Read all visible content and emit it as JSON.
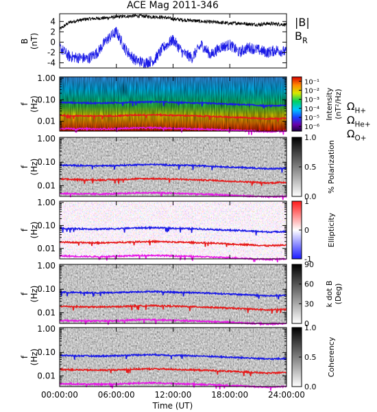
{
  "title": "ACE Mag 2011-346",
  "colors": {
    "total_field": "#000000",
    "radial_field": "#1a1ae6",
    "proton_cyclotron": "#1a1ae6",
    "helium_cyclotron": "#e61a1a",
    "oxygen_cyclotron": "#e619e6"
  },
  "chart_data": [
    {
      "type": "line",
      "name": "magnetic-field",
      "ylabel": "B (nT)",
      "ylabel_main": "B",
      "ylabel_unit": "(nT)",
      "ylim": [
        -5,
        5.5
      ],
      "yticks": [
        "4",
        "2",
        "0",
        "-2",
        "-4"
      ],
      "ytick_values": [
        4,
        2,
        0,
        -2,
        -4
      ],
      "xlim": [
        0,
        24
      ],
      "legend": [
        {
          "label": "|B|",
          "color": "#000000"
        },
        {
          "label": "B",
          "sub": "R",
          "color": "#1a1ae6"
        }
      ],
      "series": [
        {
          "name": "|B|",
          "x": [
            0,
            1,
            2,
            3,
            4,
            5,
            6,
            7,
            8,
            9,
            10,
            11,
            12,
            13,
            14,
            15,
            16,
            17,
            18,
            19,
            20,
            21,
            22,
            23,
            24
          ],
          "values": [
            2.5,
            3.8,
            4.2,
            4.5,
            4.6,
            4.7,
            4.9,
            5.0,
            5.1,
            5.0,
            4.9,
            4.8,
            4.5,
            4.3,
            4.2,
            4.0,
            3.9,
            3.8,
            3.6,
            3.7,
            3.5,
            3.4,
            3.6,
            3.5,
            3.4
          ]
        },
        {
          "name": "B_R",
          "x": [
            0,
            1,
            2,
            3,
            4,
            5,
            6,
            7,
            8,
            9,
            10,
            11,
            12,
            13,
            14,
            15,
            16,
            17,
            18,
            19,
            20,
            21,
            22,
            23,
            24
          ],
          "values": [
            -1.0,
            -2.8,
            -3.0,
            -3.2,
            -2.0,
            0.5,
            2.0,
            -1.5,
            -3.5,
            -4.0,
            -3.5,
            -1.0,
            0.5,
            -2.0,
            -3.0,
            -0.5,
            -2.5,
            -1.0,
            -0.5,
            -2.0,
            -1.0,
            -1.5,
            -2.0,
            -1.5,
            -2.0
          ]
        }
      ]
    },
    {
      "type": "heatmap",
      "name": "intensity-spectrogram",
      "ylabel_main": "f",
      "ylabel_unit": "(Hz)",
      "yscale": "log",
      "ylim": [
        0.0035,
        1.15
      ],
      "yticks": [
        "1.00",
        "0.10",
        "0.01"
      ],
      "ytick_values": [
        1,
        0.1,
        0.01
      ],
      "colorbar": {
        "scale": "jet",
        "label": "Intensity",
        "unit": "(nT²/Hz)",
        "ticks": [
          "10⁻¹",
          "10⁻²",
          "10⁻³",
          "10⁻⁴",
          "10⁻⁵",
          "10⁻⁶"
        ],
        "tick_values": [
          0.1,
          0.01,
          0.001,
          0.0001,
          1e-05,
          1e-06
        ],
        "range": [
          3e-07,
          0.3
        ]
      },
      "legend": [
        {
          "label": "Ω",
          "sub": "H+",
          "color": "#1a1ae6"
        },
        {
          "label": "Ω",
          "sub": "He+",
          "color": "#e61a1a"
        },
        {
          "label": "Ω",
          "sub": "O+",
          "color": "#e619e6"
        }
      ]
    },
    {
      "type": "heatmap",
      "name": "polarization-spectrogram",
      "ylabel_main": "f",
      "ylabel_unit": "(Hz)",
      "yscale": "log",
      "ylim": [
        0.0035,
        1.15
      ],
      "yticks": [
        "1.00",
        "0.10",
        "0.01"
      ],
      "ytick_values": [
        1,
        0.1,
        0.01
      ],
      "colorbar": {
        "scale": "gray-reversed",
        "label": "% Polarization",
        "ticks": [
          "1.0",
          "0.5",
          "0.0"
        ],
        "tick_values": [
          1,
          0.5,
          0
        ],
        "range": [
          0,
          1
        ]
      }
    },
    {
      "type": "heatmap",
      "name": "ellipticity-spectrogram",
      "ylabel_main": "f",
      "ylabel_unit": "(Hz)",
      "yscale": "log",
      "ylim": [
        0.0035,
        1.15
      ],
      "yticks": [
        "1.00",
        "0.10",
        "0.01"
      ],
      "ytick_values": [
        1,
        0.1,
        0.01
      ],
      "colorbar": {
        "scale": "blue-white-red",
        "label": "Ellipticity",
        "ticks": [
          "1",
          "0",
          "-1"
        ],
        "tick_values": [
          1,
          0,
          -1
        ],
        "range": [
          -1,
          1
        ]
      }
    },
    {
      "type": "heatmap",
      "name": "k-dot-b-spectrogram",
      "ylabel_main": "f",
      "ylabel_unit": "(Hz)",
      "yscale": "log",
      "ylim": [
        0.0035,
        1.15
      ],
      "yticks": [
        "1.00",
        "0.10",
        "0.01"
      ],
      "ytick_values": [
        1,
        0.1,
        0.01
      ],
      "colorbar": {
        "scale": "gray-reversed",
        "label": "k dot B",
        "unit": "(Deg)",
        "ticks": [
          "90",
          "60",
          "30",
          "0"
        ],
        "tick_values": [
          90,
          60,
          30,
          0
        ],
        "range": [
          0,
          90
        ]
      }
    },
    {
      "type": "heatmap",
      "name": "coherency-spectrogram",
      "ylabel_main": "f",
      "ylabel_unit": "(Hz)",
      "yscale": "log",
      "ylim": [
        0.0035,
        1.15
      ],
      "yticks": [
        "1.00",
        "0.10",
        "0.01"
      ],
      "ytick_values": [
        1,
        0.1,
        0.01
      ],
      "colorbar": {
        "scale": "gray-reversed",
        "label": "Coherency",
        "ticks": [
          "1.0",
          "0.5",
          "0.0"
        ],
        "tick_values": [
          1,
          0.5,
          0
        ],
        "range": [
          0,
          1
        ]
      },
      "xlabel": "Time (UT)",
      "xticks": [
        "00:00:00",
        "06:00:00",
        "12:00:00",
        "18:00:00",
        "24:00:00"
      ],
      "xtick_values": [
        0,
        6,
        12,
        18,
        24
      ]
    }
  ],
  "cyclotron_curves": {
    "x": [
      0,
      2,
      4,
      6,
      8,
      10,
      12,
      14,
      16,
      18,
      20,
      22,
      24
    ],
    "H+": [
      0.075,
      0.072,
      0.07,
      0.072,
      0.078,
      0.08,
      0.075,
      0.072,
      0.068,
      0.062,
      0.058,
      0.052,
      0.055
    ],
    "He+": [
      0.019,
      0.018,
      0.0175,
      0.018,
      0.0195,
      0.02,
      0.019,
      0.018,
      0.017,
      0.0155,
      0.0145,
      0.013,
      0.014
    ],
    "O+": [
      0.0047,
      0.0045,
      0.0044,
      0.0045,
      0.0049,
      0.005,
      0.0047,
      0.0045,
      0.0042,
      0.0039,
      0.0036,
      0.0033,
      0.0035
    ]
  }
}
